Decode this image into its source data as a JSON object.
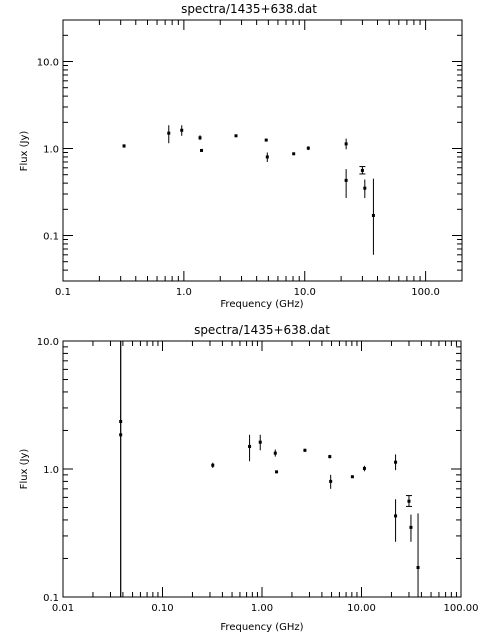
{
  "chart_data": [
    {
      "type": "scatter",
      "title": "spectra/1435+638.dat",
      "xlabel": "Frequency (GHz)",
      "ylabel": "Flux (Jy)",
      "xscale": "log",
      "yscale": "log",
      "xlim": [
        0.1,
        200
      ],
      "ylim": [
        0.03,
        30
      ],
      "xticks": [
        0.1,
        1.0,
        10.0,
        100.0
      ],
      "xtick_labels": [
        "0.1",
        "1.0",
        "10.0",
        "100.0"
      ],
      "yticks": [
        0.1,
        1.0,
        10.0
      ],
      "ytick_labels": [
        "0.1",
        "1.0",
        "10.0"
      ],
      "grid": false,
      "color": "#000000",
      "points": [
        {
          "x": 0.32,
          "y": 1.07,
          "err": [
            1.02,
            1.12
          ]
        },
        {
          "x": 0.75,
          "y": 1.5,
          "err": [
            1.15,
            1.85
          ]
        },
        {
          "x": 0.96,
          "y": 1.62,
          "err": [
            1.4,
            1.85
          ]
        },
        {
          "x": 1.36,
          "y": 1.33,
          "err": [
            1.25,
            1.42
          ]
        },
        {
          "x": 1.4,
          "y": 0.95,
          "err": [
            0.93,
            0.97
          ]
        },
        {
          "x": 2.7,
          "y": 1.4,
          "err": [
            1.36,
            1.44
          ]
        },
        {
          "x": 4.8,
          "y": 1.25,
          "err": [
            1.21,
            1.29
          ]
        },
        {
          "x": 4.9,
          "y": 0.8,
          "err": [
            0.7,
            0.9
          ]
        },
        {
          "x": 8.1,
          "y": 0.87,
          "err": [
            0.85,
            0.89
          ]
        },
        {
          "x": 10.7,
          "y": 1.01,
          "err": [
            0.96,
            1.06
          ]
        },
        {
          "x": 22.0,
          "y": 1.13,
          "err": [
            0.98,
            1.3
          ]
        },
        {
          "x": 22.0,
          "y": 0.43,
          "err": [
            0.27,
            0.58
          ]
        },
        {
          "x": 30.0,
          "y": 0.56,
          "err": [
            0.51,
            0.62
          ]
        },
        {
          "x": 31.4,
          "y": 0.35,
          "err": [
            0.27,
            0.44
          ]
        },
        {
          "x": 37.0,
          "y": 0.17,
          "err": [
            0.06,
            0.45
          ]
        }
      ]
    },
    {
      "type": "scatter",
      "title": "spectra/1435+638.dat",
      "xlabel": "Frequency (GHz)",
      "ylabel": "Flux (Jy)",
      "xscale": "log",
      "yscale": "log",
      "xlim": [
        0.01,
        100
      ],
      "ylim": [
        0.1,
        10
      ],
      "xticks": [
        0.01,
        0.1,
        1.0,
        10.0,
        100.0
      ],
      "xtick_labels": [
        "0.01",
        "0.10",
        "1.00",
        "10.00",
        "100.00"
      ],
      "yticks": [
        0.1,
        1.0,
        10.0
      ],
      "ytick_labels": [
        "0.1",
        "1.0",
        "10.0"
      ],
      "grid": false,
      "color": "#000000",
      "points": [
        {
          "x": 0.038,
          "y": 1.85,
          "err": [
            0.1,
            10.0
          ]
        },
        {
          "x": 0.038,
          "y": 2.35,
          "err": [
            0.1,
            10.0
          ]
        },
        {
          "x": 0.32,
          "y": 1.07,
          "err": [
            1.02,
            1.12
          ]
        },
        {
          "x": 0.75,
          "y": 1.5,
          "err": [
            1.15,
            1.85
          ]
        },
        {
          "x": 0.96,
          "y": 1.62,
          "err": [
            1.4,
            1.85
          ]
        },
        {
          "x": 1.36,
          "y": 1.33,
          "err": [
            1.25,
            1.42
          ]
        },
        {
          "x": 1.4,
          "y": 0.95,
          "err": [
            0.93,
            0.97
          ]
        },
        {
          "x": 2.7,
          "y": 1.4,
          "err": [
            1.36,
            1.44
          ]
        },
        {
          "x": 4.8,
          "y": 1.25,
          "err": [
            1.21,
            1.29
          ]
        },
        {
          "x": 4.9,
          "y": 0.8,
          "err": [
            0.7,
            0.9
          ]
        },
        {
          "x": 8.1,
          "y": 0.87,
          "err": [
            0.85,
            0.89
          ]
        },
        {
          "x": 10.7,
          "y": 1.01,
          "err": [
            0.96,
            1.06
          ]
        },
        {
          "x": 22.0,
          "y": 1.13,
          "err": [
            0.98,
            1.3
          ]
        },
        {
          "x": 22.0,
          "y": 0.43,
          "err": [
            0.27,
            0.58
          ]
        },
        {
          "x": 30.0,
          "y": 0.56,
          "err": [
            0.51,
            0.62
          ]
        },
        {
          "x": 31.4,
          "y": 0.35,
          "err": [
            0.27,
            0.44
          ]
        },
        {
          "x": 37.0,
          "y": 0.17,
          "err": [
            0.06,
            0.45
          ]
        }
      ]
    }
  ]
}
